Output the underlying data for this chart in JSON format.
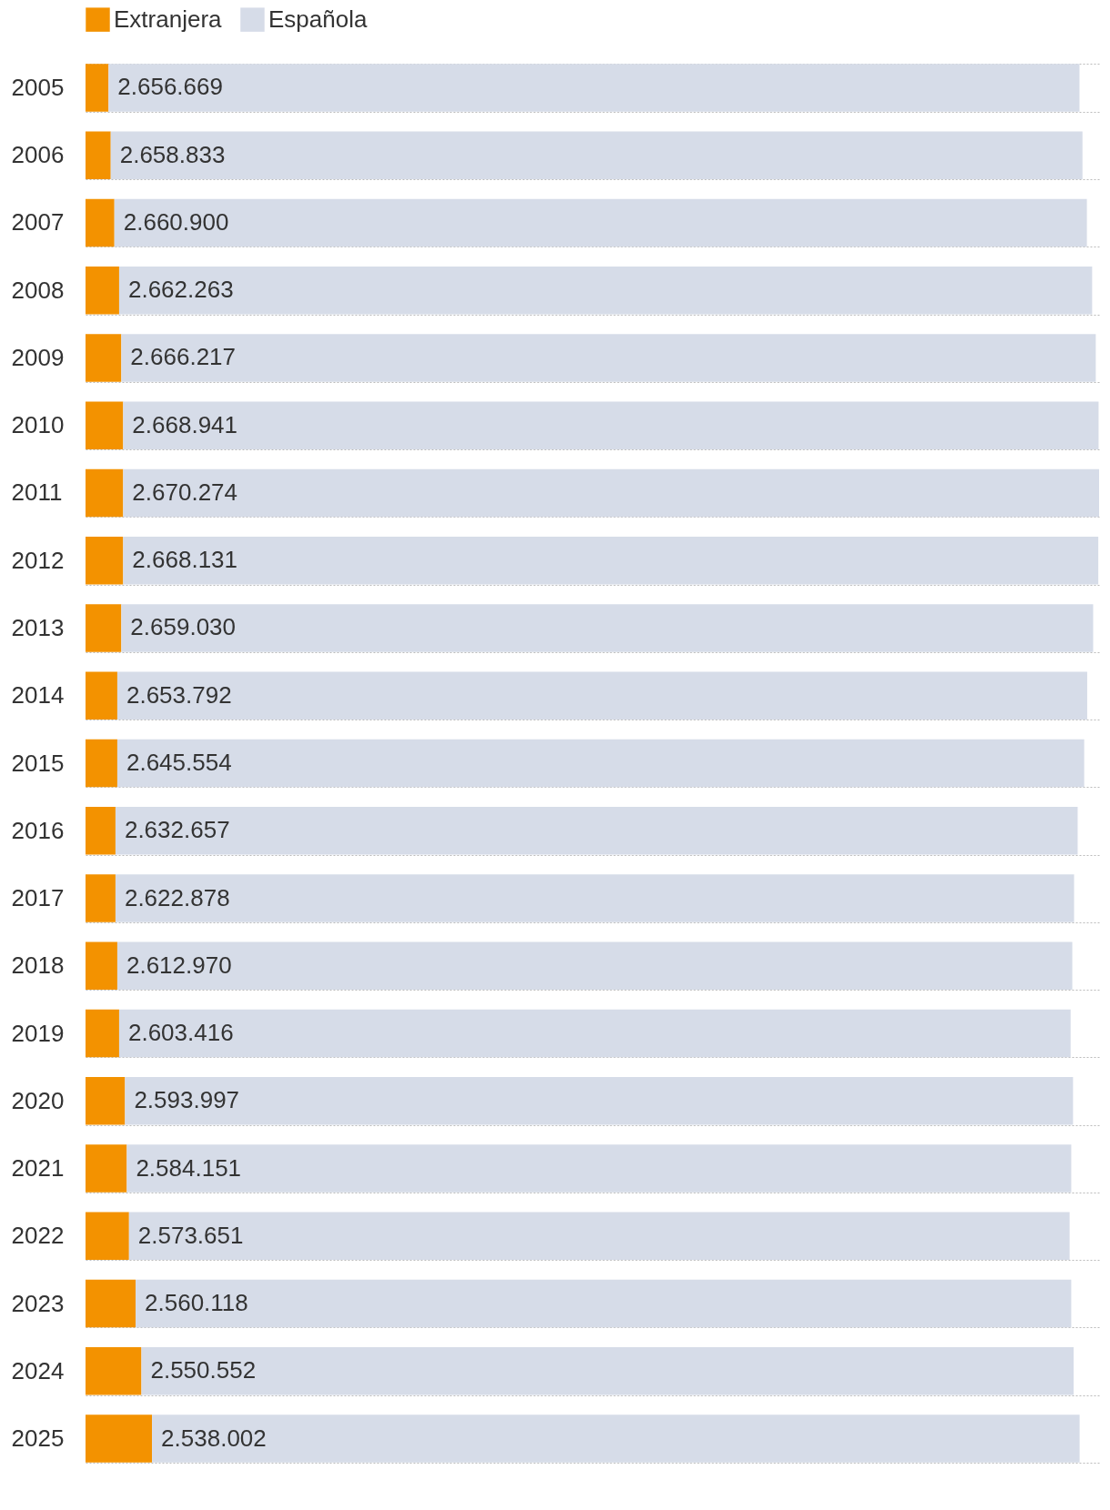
{
  "chart_data": {
    "type": "bar",
    "orientation": "horizontal",
    "stacked": true,
    "legend": "top left",
    "grid": "y",
    "categories": [
      "2005",
      "2006",
      "2007",
      "2008",
      "2009",
      "2010",
      "2011",
      "2012",
      "2013",
      "2014",
      "2015",
      "2016",
      "2017",
      "2018",
      "2019",
      "2020",
      "2021",
      "2022",
      "2023",
      "2024",
      "2025"
    ],
    "series": [
      {
        "name": "Extranjera",
        "color": "#f39200",
        "values": [
          63000,
          69000,
          79000,
          92000,
          98000,
          103000,
          103000,
          103000,
          98000,
          87000,
          87000,
          82000,
          82000,
          87000,
          92000,
          108000,
          113000,
          119000,
          137000,
          153000,
          182000
        ]
      },
      {
        "name": "Española",
        "color": "#d6dce8",
        "values": [
          2656669,
          2658833,
          2660900,
          2662263,
          2666217,
          2668941,
          2670274,
          2668131,
          2659030,
          2653792,
          2645554,
          2632657,
          2622878,
          2612970,
          2603416,
          2593997,
          2584151,
          2573651,
          2560118,
          2550552,
          2538002
        ],
        "value_labels": [
          "2.656.669",
          "2.658.833",
          "2.660.900",
          "2.662.263",
          "2.666.217",
          "2.668.941",
          "2.670.274",
          "2.668.131",
          "2.659.030",
          "2.653.792",
          "2.645.554",
          "2.632.657",
          "2.622.878",
          "2.612.970",
          "2.603.416",
          "2.593.997",
          "2.584.151",
          "2.573.651",
          "2.560.118",
          "2.550.552",
          "2.538.002"
        ]
      }
    ]
  }
}
